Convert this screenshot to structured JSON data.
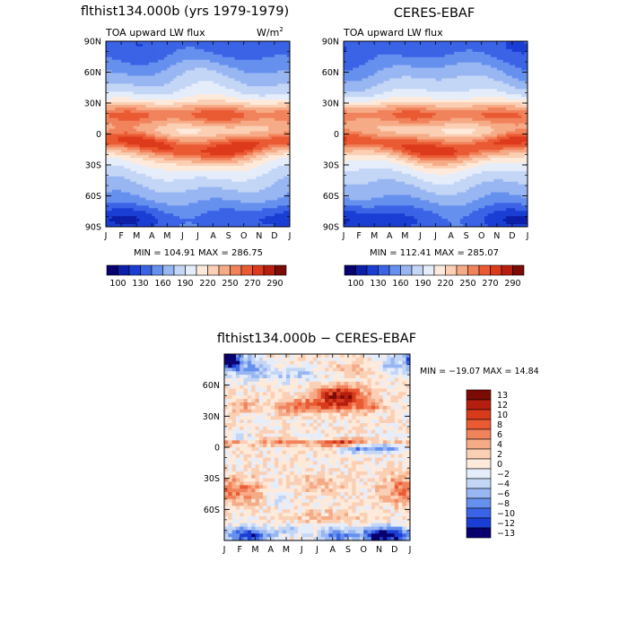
{
  "chart_data": [
    {
      "type": "heatmap",
      "panel": "model",
      "title": "flthist134.000b (yrs 1979-1979)",
      "subtitle_left": "TOA upward LW flux",
      "units": "W/m",
      "units_exp": "2",
      "x_ticks": [
        "J",
        "F",
        "M",
        "A",
        "M",
        "J",
        "J",
        "A",
        "S",
        "O",
        "N",
        "D",
        "J"
      ],
      "y_ticks": [
        "90N",
        "60N",
        "30N",
        "0",
        "30S",
        "60S",
        "90S"
      ],
      "ylim": [
        -90,
        90
      ],
      "stats_label": "MIN = 104.91  MAX = 286.75",
      "min": 104.91,
      "max": 286.75,
      "colorbar_labels": [
        "100",
        "130",
        "160",
        "190",
        "220",
        "250",
        "270",
        "290"
      ],
      "colorbar_levels": [
        90,
        100,
        115,
        130,
        145,
        160,
        175,
        190,
        205,
        220,
        235,
        250,
        260,
        270,
        280,
        290
      ]
    },
    {
      "type": "heatmap",
      "panel": "observation",
      "title": "CERES-EBAF",
      "subtitle_left": "TOA upward LW flux",
      "x_ticks": [
        "J",
        "F",
        "M",
        "A",
        "M",
        "J",
        "J",
        "A",
        "S",
        "O",
        "N",
        "D",
        "J"
      ],
      "y_ticks": [
        "90N",
        "60N",
        "30N",
        "0",
        "30S",
        "60S",
        "90S"
      ],
      "ylim": [
        -90,
        90
      ],
      "stats_label": "MIN = 112.41  MAX = 285.07",
      "min": 112.41,
      "max": 285.07,
      "colorbar_labels": [
        "100",
        "130",
        "160",
        "190",
        "220",
        "250",
        "270",
        "290"
      ],
      "colorbar_levels": [
        90,
        100,
        115,
        130,
        145,
        160,
        175,
        190,
        205,
        220,
        235,
        250,
        260,
        270,
        280,
        290
      ]
    },
    {
      "type": "heatmap",
      "panel": "difference",
      "title": "flthist134.000b  −  CERES-EBAF",
      "x_ticks": [
        "J",
        "F",
        "M",
        "A",
        "M",
        "J",
        "J",
        "A",
        "S",
        "O",
        "N",
        "D",
        "J"
      ],
      "y_ticks": [
        "60N",
        "30N",
        "0",
        "30S",
        "60S"
      ],
      "ylim": [
        -90,
        90
      ],
      "stats_label": "MIN = −19.07  MAX =  14.84",
      "min": -19.07,
      "max": 14.84,
      "colorbar_labels": [
        "13",
        "12",
        "10",
        "8",
        "6",
        "4",
        "2",
        "0",
        "−2",
        "−4",
        "−6",
        "−8",
        "−10",
        "−12",
        "−13"
      ],
      "colorbar_levels": [
        13,
        12,
        10,
        8,
        6,
        4,
        2,
        0,
        -2,
        -4,
        -6,
        -8,
        -10,
        -12,
        -13
      ]
    }
  ],
  "colors": {
    "mean_palette": [
      "#08006e",
      "#0d1fa8",
      "#1a3ed4",
      "#3a63e6",
      "#6690ee",
      "#98b6f2",
      "#c4d6f6",
      "#e5edfb",
      "#fdeadb",
      "#fbcfb4",
      "#f6ab87",
      "#f1835c",
      "#ea5a33",
      "#dc3a1b",
      "#b61e0f",
      "#7a0c05"
    ],
    "diff_palette": [
      "#7a0c05",
      "#b61e0f",
      "#d83a1c",
      "#ea5a33",
      "#f1835c",
      "#f6ab87",
      "#fbcfb4",
      "#fdeadb",
      "#e5edfb",
      "#c4d6f6",
      "#98b6f2",
      "#6690ee",
      "#3a63e6",
      "#1a3ed4",
      "#08006e"
    ]
  }
}
